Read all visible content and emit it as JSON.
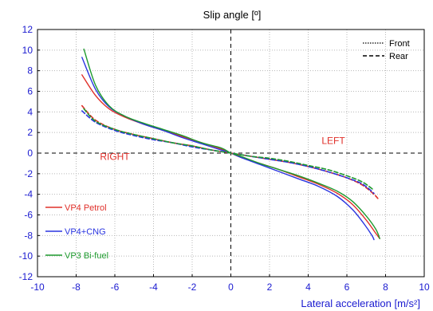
{
  "chart_data": {
    "type": "line",
    "title": "Slip angle  [º]",
    "xlabel": "Lateral acceleration  [m/s²]",
    "ylabel": "",
    "xlim": [
      -10,
      10
    ],
    "ylim": [
      -12,
      12
    ],
    "xticks": [
      -10,
      -8,
      -6,
      -4,
      -2,
      0,
      2,
      4,
      6,
      8,
      10
    ],
    "yticks": [
      -12,
      -10,
      -8,
      -6,
      -4,
      -2,
      0,
      2,
      4,
      6,
      8,
      10,
      12
    ],
    "grid": true,
    "line_styles": [
      {
        "label": "Front",
        "dash": "dotted"
      },
      {
        "label": "Rear",
        "dash": "dashed"
      }
    ],
    "annotations": [
      {
        "text": "RIGHT",
        "x": -6.0,
        "y": -0.65,
        "color": "#e0302a"
      },
      {
        "text": "LEFT",
        "x": 5.3,
        "y": 0.9,
        "color": "#e0302a"
      }
    ],
    "series": [
      {
        "name": "VP4 Petrol",
        "color": "#e0302a",
        "axle": "Front",
        "x": [
          -7.7,
          -7.0,
          -6.3,
          -5.5,
          -4.5,
          -3.5,
          -2.5,
          -1.5,
          -0.5,
          0,
          0.5,
          1.5,
          2.5,
          3.5,
          4.5,
          5.5,
          6.3,
          7.0,
          7.5,
          7.7
        ],
        "y": [
          7.6,
          5.6,
          4.3,
          3.5,
          2.8,
          2.2,
          1.6,
          1.0,
          0.4,
          0.0,
          -0.4,
          -1.0,
          -1.6,
          -2.3,
          -3.0,
          -3.9,
          -5.0,
          -6.5,
          -7.8,
          -8.3
        ]
      },
      {
        "name": "VP4+CNG",
        "color": "#2a35e0",
        "axle": "Front",
        "x": [
          -7.7,
          -7.0,
          -6.3,
          -5.5,
          -4.5,
          -3.5,
          -2.5,
          -1.5,
          -0.5,
          0,
          0.5,
          1.5,
          2.5,
          3.5,
          4.5,
          5.5,
          6.3,
          6.9,
          7.3,
          7.4
        ],
        "y": [
          9.3,
          6.2,
          4.5,
          3.6,
          2.8,
          2.2,
          1.5,
          0.9,
          0.3,
          0.0,
          -0.4,
          -1.1,
          -1.8,
          -2.5,
          -3.2,
          -4.2,
          -5.5,
          -6.9,
          -8.0,
          -8.4
        ]
      },
      {
        "name": "VP3 Bi-fuel",
        "color": "#1e9a2e",
        "axle": "Front",
        "x": [
          -7.6,
          -7.0,
          -6.3,
          -5.5,
          -4.5,
          -3.5,
          -2.5,
          -1.5,
          -0.5,
          0,
          0.5,
          1.5,
          2.5,
          3.5,
          4.5,
          5.5,
          6.3,
          7.0,
          7.5,
          7.7
        ],
        "y": [
          10.1,
          6.6,
          4.6,
          3.6,
          2.9,
          2.3,
          1.7,
          1.0,
          0.5,
          0.0,
          -0.3,
          -1.0,
          -1.6,
          -2.2,
          -2.9,
          -3.7,
          -4.7,
          -6.1,
          -7.4,
          -8.3
        ]
      },
      {
        "name": "VP4 Petrol",
        "color": "#e0302a",
        "axle": "Rear",
        "x": [
          -7.7,
          -7.0,
          -6.0,
          -5.0,
          -4.0,
          -3.0,
          -2.0,
          -1.0,
          0,
          1.0,
          2.0,
          3.0,
          4.0,
          5.0,
          6.0,
          6.8,
          7.4,
          7.6
        ],
        "y": [
          4.6,
          3.2,
          2.3,
          1.8,
          1.4,
          1.0,
          0.7,
          0.3,
          0.0,
          -0.3,
          -0.6,
          -0.9,
          -1.3,
          -1.8,
          -2.4,
          -3.1,
          -4.0,
          -4.4
        ]
      },
      {
        "name": "VP4+CNG",
        "color": "#2a35e0",
        "axle": "Rear",
        "x": [
          -7.7,
          -7.0,
          -6.0,
          -5.0,
          -4.0,
          -3.0,
          -2.0,
          -1.0,
          0,
          1.0,
          2.0,
          3.0,
          4.0,
          5.0,
          6.0,
          6.8,
          7.4
        ],
        "y": [
          4.1,
          3.0,
          2.2,
          1.7,
          1.3,
          1.0,
          0.6,
          0.3,
          0.0,
          -0.3,
          -0.6,
          -0.9,
          -1.3,
          -1.8,
          -2.4,
          -3.0,
          -3.9
        ]
      },
      {
        "name": "VP3 Bi-fuel",
        "color": "#1e9a2e",
        "axle": "Rear",
        "x": [
          -7.6,
          -7.0,
          -6.0,
          -5.0,
          -4.0,
          -3.0,
          -2.0,
          -1.0,
          0,
          1.0,
          2.0,
          3.0,
          4.0,
          5.0,
          6.0,
          6.8,
          7.4
        ],
        "y": [
          4.3,
          3.1,
          2.3,
          1.8,
          1.4,
          1.0,
          0.7,
          0.3,
          0.0,
          -0.3,
          -0.5,
          -0.8,
          -1.2,
          -1.6,
          -2.2,
          -2.8,
          -3.6
        ]
      }
    ],
    "series_legend": [
      {
        "label": "VP4 Petrol",
        "color": "#e0302a"
      },
      {
        "label": "VP4+CNG",
        "color": "#2a35e0"
      },
      {
        "label": "VP3 Bi-fuel",
        "color": "#1e9a2e"
      }
    ]
  }
}
